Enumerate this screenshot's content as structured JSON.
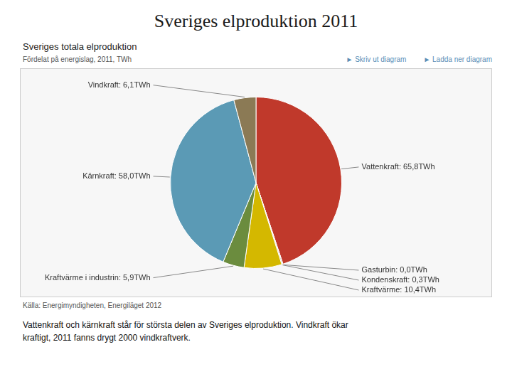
{
  "chart_data": {
    "type": "pie",
    "title": "Sveriges elproduktion 2011",
    "subtitle": "Sveriges totala elproduktion",
    "annotations": [
      "Fördelat på energislag, 2011, TWh",
      "► Skriv ut diagram",
      "► Ladda ner diagram"
    ],
    "source": "Källa: Energimyndigheten, Energiläget 2012",
    "footer": [
      "Vattenkraft och kärnkraft står för största delen av Sveriges elproduktion. Vindkraft ökar",
      "kraftigt, 2011 fanns drygt 2000 vindkraftverk."
    ],
    "categories": [
      "Vattenkraft: 65,8TWh",
      "Gasturbin: 0,0TWh",
      "Kondenskraft: 0,3TWh",
      "Kraftvärme: 10,4TWh",
      "Kraftvärme i industrin: 5,9TWh",
      "Kärnkraft: 58,0TWh",
      "Vindkraft: 6,1TWh"
    ],
    "values": [
      65.8,
      0.05,
      0.3,
      10.4,
      5.9,
      58.0,
      6.1
    ],
    "colors": [
      "#c0392b",
      "#d5cfc8",
      "#c8b89a",
      "#d4b800",
      "#6b8c3e",
      "#5b9ab5",
      "#8b7a55"
    ]
  }
}
